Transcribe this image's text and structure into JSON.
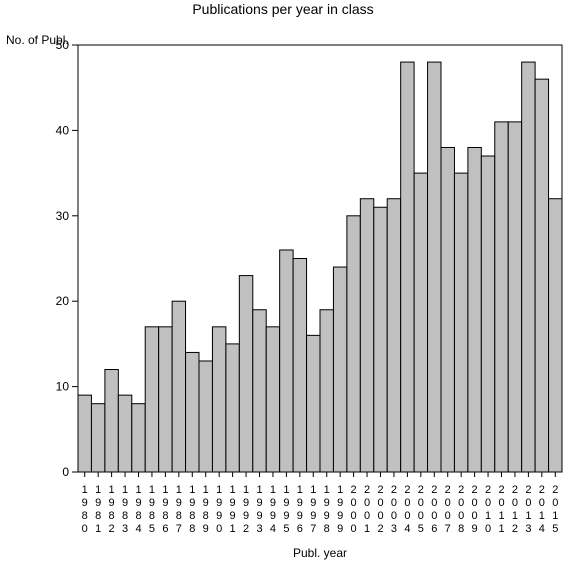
{
  "chart_data": {
    "type": "bar",
    "title": "Publications per year in class",
    "xlabel": "Publ. year",
    "ylabel": "No. of Publ.",
    "ylim": [
      0,
      50
    ],
    "yticks": [
      0,
      10,
      20,
      30,
      40,
      50
    ],
    "grid": false,
    "legend": "none",
    "categories": [
      "1980",
      "1981",
      "1982",
      "1983",
      "1984",
      "1985",
      "1986",
      "1987",
      "1988",
      "1989",
      "1990",
      "1991",
      "1992",
      "1993",
      "1994",
      "1995",
      "1996",
      "1997",
      "1998",
      "1999",
      "2000",
      "2001",
      "2002",
      "2003",
      "2004",
      "2005",
      "2006",
      "2007",
      "2008",
      "2009",
      "2010",
      "2011",
      "2012",
      "2013",
      "2014",
      "2015"
    ],
    "values": [
      9,
      8,
      12,
      9,
      8,
      17,
      17,
      20,
      14,
      13,
      17,
      15,
      23,
      19,
      17,
      26,
      25,
      16,
      19,
      24,
      30,
      32,
      31,
      32,
      48,
      35,
      48,
      38,
      35,
      38,
      37,
      41,
      41,
      48,
      46,
      32
    ],
    "bar_color": "#c0c0c0",
    "bar_edge_color": "#000000"
  }
}
